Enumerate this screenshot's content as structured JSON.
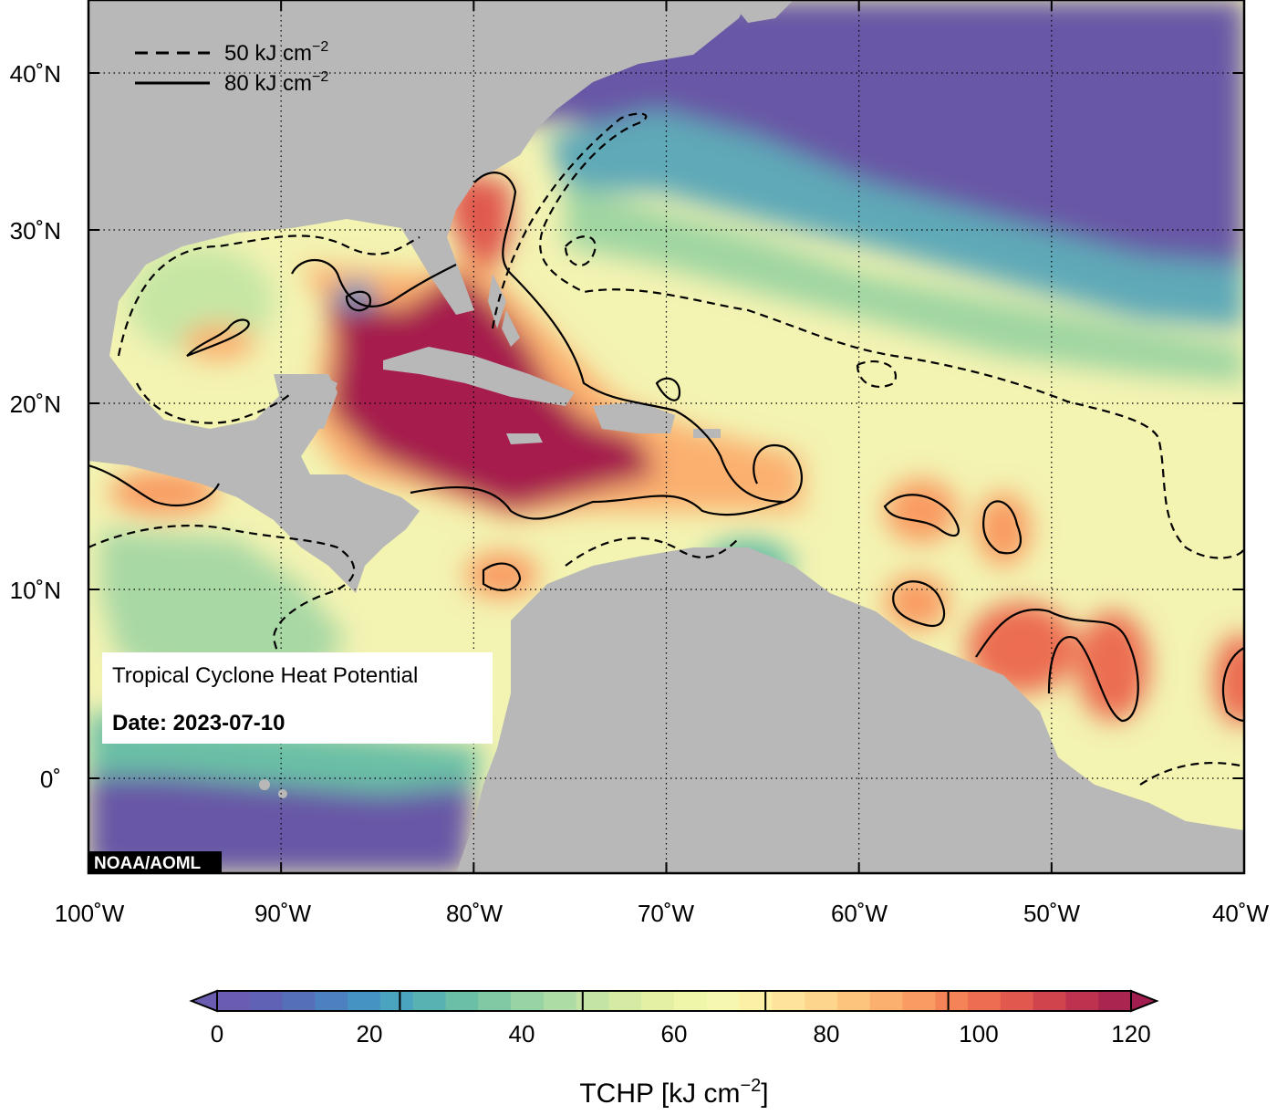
{
  "map": {
    "title": "Tropical Cyclone Heat Potential",
    "date_label": "Date: 2023-07-10",
    "credit": "NOAA/AOML",
    "lat_labels": [
      "40˚N",
      "30˚N",
      "20˚N",
      "10˚N",
      "0˚"
    ],
    "lon_labels": [
      "100˚W",
      "90˚W",
      "80˚W",
      "70˚W",
      "60˚W",
      "50˚W",
      "40˚W"
    ],
    "extent": {
      "lon": [
        -100,
        -40
      ],
      "lat": [
        -5,
        45
      ]
    }
  },
  "contour_legend": {
    "items": [
      {
        "style": "dashed",
        "value": "50",
        "unit": "kJ cm",
        "exp": "−2"
      },
      {
        "style": "solid",
        "value": "80",
        "unit": "kJ cm",
        "exp": "−2"
      }
    ]
  },
  "colorbar": {
    "ticks": [
      "0",
      "20",
      "40",
      "60",
      "80",
      "100",
      "120"
    ],
    "label": "TCHP [kJ cm",
    "label_exp": "−2",
    "label_close": "]",
    "min": 0,
    "max": 120,
    "colors": [
      "#6a5cb0",
      "#5f62b5",
      "#5670b8",
      "#4d80be",
      "#4593c3",
      "#4aa3bf",
      "#57b2b1",
      "#6bbfa6",
      "#80c9a4",
      "#98d3a3",
      "#aedca5",
      "#c3e4a4",
      "#d5eba3",
      "#e4f1a4",
      "#eff5a9",
      "#f6f7b0",
      "#fbf0a6",
      "#fde49a",
      "#fdd58c",
      "#fcc47d",
      "#fbb06f",
      "#f99b62",
      "#f48458",
      "#ec6d51",
      "#e0584e",
      "#d0444e",
      "#bd334f",
      "#aa2550"
    ],
    "under_color": "#6a5cb0",
    "over_color": "#a11c4f"
  },
  "colors": {
    "land": "#b8b8b8",
    "cold": "#6757a6",
    "hot": "#a51a4d",
    "neutral": "#f3f3b2"
  }
}
